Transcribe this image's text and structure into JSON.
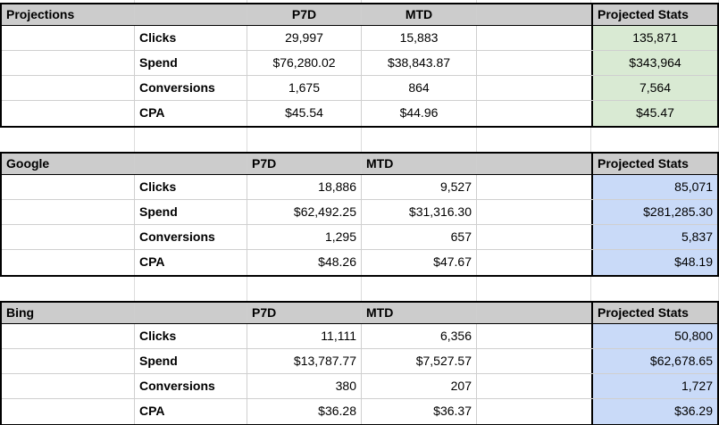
{
  "colors": {
    "header_bg": "#cccccc",
    "projections_accent": "#d9ead3",
    "google_accent": "#c9daf8",
    "bing_accent": "#c9daf8",
    "table_border": "#000000",
    "gridline": "#cfcfcf"
  },
  "tables": [
    {
      "title": "Projections",
      "columns": {
        "p7d": "P7D",
        "mtd": "MTD",
        "projected": "Projected Stats"
      },
      "rows": [
        {
          "label": "Clicks",
          "p7d": "29,997",
          "mtd": "15,883",
          "projected": "135,871"
        },
        {
          "label": "Spend",
          "p7d": "$76,280.02",
          "mtd": "$38,843.87",
          "projected": "$343,964"
        },
        {
          "label": "Conversions",
          "p7d": "1,675",
          "mtd": "864",
          "projected": "7,564"
        },
        {
          "label": "CPA",
          "p7d": "$45.54",
          "mtd": "$44.96",
          "projected": "$45.47"
        }
      ]
    },
    {
      "title": "Google",
      "columns": {
        "p7d": "P7D",
        "mtd": "MTD",
        "projected": "Projected Stats"
      },
      "rows": [
        {
          "label": "Clicks",
          "p7d": "18,886",
          "mtd": "9,527",
          "projected": "85,071"
        },
        {
          "label": "Spend",
          "p7d": "$62,492.25",
          "mtd": "$31,316.30",
          "projected": "$281,285.30"
        },
        {
          "label": "Conversions",
          "p7d": "1,295",
          "mtd": "657",
          "projected": "5,837"
        },
        {
          "label": "CPA",
          "p7d": "$48.26",
          "mtd": "$47.67",
          "projected": "$48.19"
        }
      ]
    },
    {
      "title": "Bing",
      "columns": {
        "p7d": "P7D",
        "mtd": "MTD",
        "projected": "Projected Stats"
      },
      "rows": [
        {
          "label": "Clicks",
          "p7d": "11,111",
          "mtd": "6,356",
          "projected": "50,800"
        },
        {
          "label": "Spend",
          "p7d": "$13,787.77",
          "mtd": "$7,527.57",
          "projected": "$62,678.65"
        },
        {
          "label": "Conversions",
          "p7d": "380",
          "mtd": "207",
          "projected": "1,727"
        },
        {
          "label": "CPA",
          "p7d": "$36.28",
          "mtd": "$36.37",
          "projected": "$36.29"
        }
      ]
    }
  ]
}
